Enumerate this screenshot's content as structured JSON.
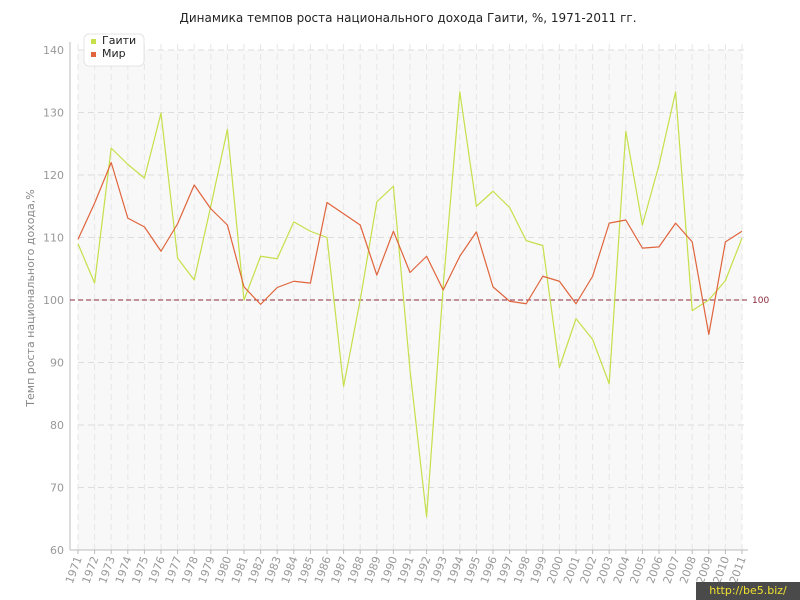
{
  "chart_data": {
    "type": "line",
    "title": "Динамика темпов роста национального дохода Гаити, %, 1971-2011 гг.",
    "xlabel": "",
    "ylabel": "Темп роста национального дохода,%",
    "ylim": [
      60,
      140
    ],
    "yticks": [
      60,
      70,
      80,
      90,
      100,
      110,
      120,
      130,
      140
    ],
    "grid": true,
    "legend_position": "top-left",
    "x": [
      1971,
      1972,
      1973,
      1974,
      1975,
      1976,
      1977,
      1978,
      1979,
      1980,
      1981,
      1982,
      1983,
      1984,
      1985,
      1986,
      1987,
      1988,
      1989,
      1990,
      1991,
      1992,
      1993,
      1994,
      1995,
      1996,
      1997,
      1998,
      1999,
      2000,
      2001,
      2002,
      2003,
      2004,
      2005,
      2006,
      2007,
      2008,
      2009,
      2010,
      2011
    ],
    "series": [
      {
        "name": "Гаити",
        "color": "#c5e04a",
        "values": [
          109.0,
          102.7,
          124.3,
          121.7,
          119.5,
          129.9,
          106.7,
          103.2,
          115.0,
          127.3,
          100.0,
          107.0,
          106.6,
          112.5,
          111.0,
          110.0,
          86.2,
          100.0,
          115.7,
          118.2,
          88.8,
          65.3,
          102.2,
          133.3,
          115.0,
          117.4,
          114.8,
          109.5,
          108.7,
          89.2,
          97.0,
          93.7,
          86.6,
          127.0,
          112.0,
          121.6,
          133.3,
          98.3,
          100.0,
          103.1,
          109.9
        ]
      },
      {
        "name": "Мир",
        "color": "#e0643c",
        "values": [
          109.7,
          115.5,
          122.0,
          113.1,
          111.7,
          107.8,
          112.2,
          118.4,
          114.6,
          112.0,
          102.1,
          99.3,
          102.0,
          103.0,
          102.7,
          115.6,
          113.8,
          112.0,
          104.0,
          111.0,
          104.4,
          107.0,
          101.6,
          107.0,
          110.9,
          102.1,
          99.8,
          99.4,
          103.8,
          103.0,
          99.4,
          103.8,
          112.3,
          112.8,
          108.3,
          108.5,
          112.3,
          109.3,
          94.5,
          109.3,
          111.0
        ]
      }
    ],
    "reference_line": {
      "value": 100,
      "label": "100",
      "color": "#8b2a3a"
    }
  },
  "watermark": "http://be5.biz/"
}
